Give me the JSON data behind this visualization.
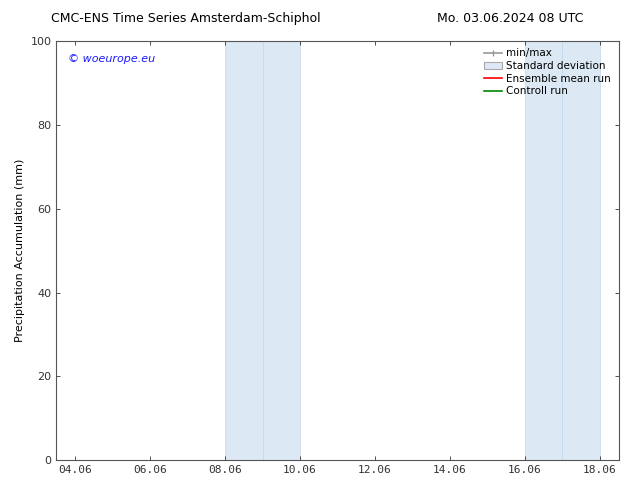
{
  "title_left": "CMC-ENS Time Series Amsterdam-Schiphol",
  "title_right": "Mo. 03.06.2024 08 UTC",
  "ylabel": "Precipitation Accumulation (mm)",
  "ylim": [
    0,
    100
  ],
  "xtick_labels": [
    "04.06",
    "06.06",
    "08.06",
    "10.06",
    "12.06",
    "14.06",
    "16.06",
    "18.06"
  ],
  "xtick_positions": [
    0,
    2,
    4,
    6,
    8,
    10,
    12,
    14
  ],
  "xlim": [
    -0.5,
    14.5
  ],
  "shaded_regions": [
    {
      "x_start": 4.0,
      "x_end": 5.0,
      "color": "#dce9f5",
      "edge": "#c2d8ed"
    },
    {
      "x_start": 5.0,
      "x_end": 6.0,
      "color": "#dce9f5",
      "edge": "#c2d8ed"
    },
    {
      "x_start": 12.0,
      "x_end": 13.0,
      "color": "#dce9f5",
      "edge": "#c2d8ed"
    },
    {
      "x_start": 13.0,
      "x_end": 14.0,
      "color": "#dce9f5",
      "edge": "#c2d8ed"
    }
  ],
  "watermark_text": "© woeurope.eu",
  "watermark_color": "#1a1aff",
  "legend_labels": [
    "min/max",
    "Standard deviation",
    "Ensemble mean run",
    "Controll run"
  ],
  "legend_colors_line": [
    "#999999",
    "#cccccc",
    "#ff0000",
    "#008800"
  ],
  "background_color": "#ffffff",
  "title_fontsize": 9,
  "axis_label_fontsize": 8,
  "tick_fontsize": 8,
  "watermark_fontsize": 8,
  "legend_fontsize": 7.5,
  "ytick_positions": [
    0,
    20,
    40,
    60,
    80,
    100
  ],
  "tick_color": "#333333",
  "spine_color": "#555555"
}
